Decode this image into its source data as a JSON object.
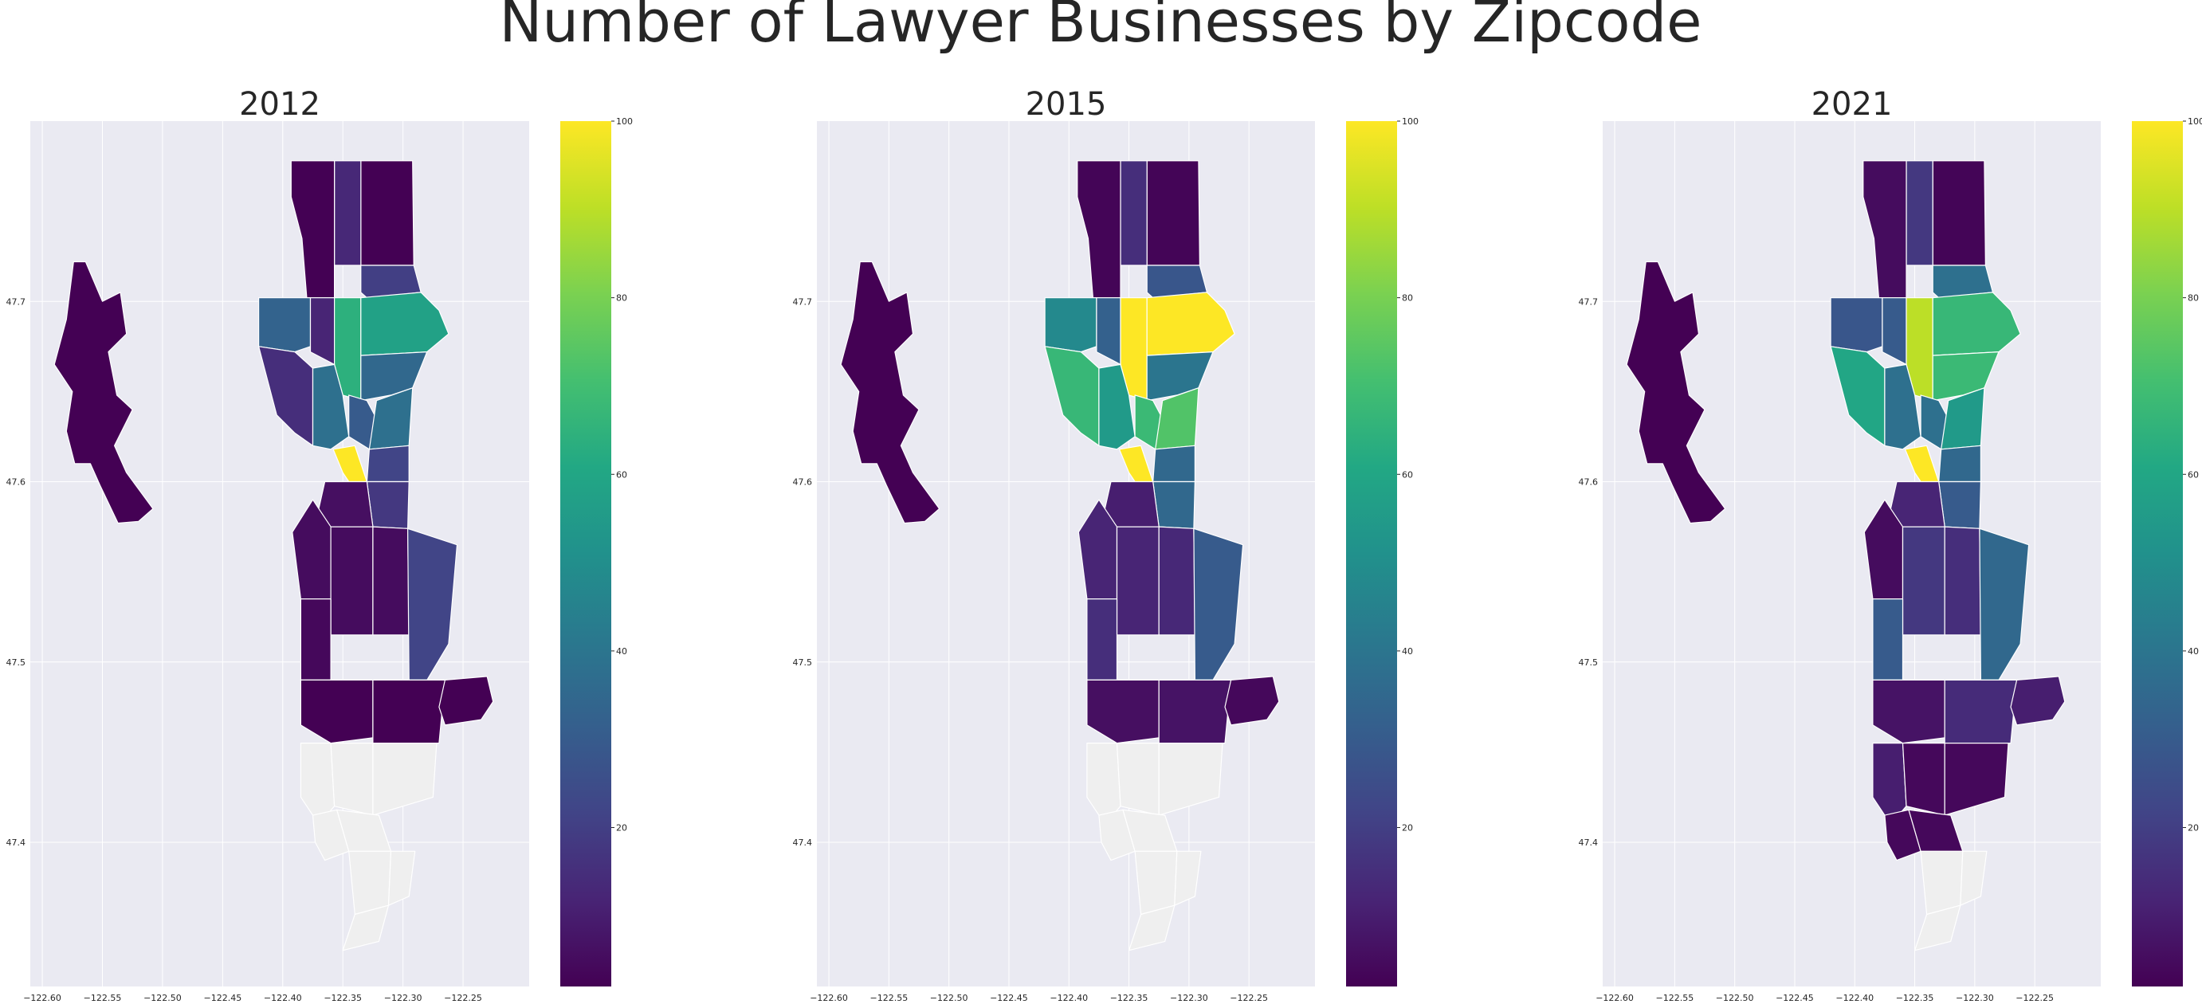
{
  "title": "Number of Lawyer Businesses by Zipcode",
  "panels": [
    {
      "title": "2012",
      "values": [
        2,
        13,
        20,
        2,
        33,
        12,
        64,
        58,
        15,
        38,
        35,
        30,
        100,
        38,
        22,
        18,
        6,
        5,
        5,
        5,
        4,
        22,
        2,
        2,
        2,
        null,
        null,
        null,
        null,
        null,
        null,
        null,
        null,
        null
      ]
    },
    {
      "title": "2015",
      "values": [
        3,
        15,
        28,
        3,
        48,
        32,
        100,
        100,
        67,
        55,
        40,
        68,
        100,
        73,
        35,
        35,
        10,
        12,
        12,
        13,
        15,
        30,
        6,
        7,
        4,
        null,
        null,
        null,
        null,
        null,
        null,
        null,
        null,
        null
      ]
    },
    {
      "title": "2021",
      "values": [
        3,
        18,
        38,
        5,
        28,
        30,
        90,
        67,
        60,
        38,
        68,
        38,
        100,
        55,
        35,
        30,
        12,
        5,
        18,
        15,
        30,
        35,
        7,
        14,
        10,
        10,
        4,
        4,
        4,
        4,
        null,
        null,
        null,
        null
      ]
    }
  ],
  "axes": {
    "x_ticks": [
      "−122.60",
      "−122.55",
      "−122.50",
      "−122.45",
      "−122.40",
      "−122.35",
      "−122.30",
      "−122.25"
    ],
    "x_tick_values": [
      -122.6,
      -122.55,
      -122.5,
      -122.45,
      -122.4,
      -122.35,
      -122.3,
      -122.25
    ],
    "y_ticks": [
      "47.4",
      "47.5",
      "47.6",
      "47.7"
    ],
    "y_tick_values": [
      47.4,
      47.5,
      47.6,
      47.7
    ],
    "xlim": [
      -122.61,
      -122.195
    ],
    "ylim": [
      47.32,
      47.8
    ]
  },
  "colorbar": {
    "ticks": [
      "20",
      "40",
      "60",
      "80",
      "100"
    ],
    "tick_values": [
      20,
      40,
      60,
      80,
      100
    ],
    "min": 2,
    "max": 100,
    "colormap": "viridis"
  },
  "colors": {
    "plot_bg": "#eaeaf2",
    "grid": "#ffffff",
    "missing": "#efefef",
    "text": "#262626"
  }
}
